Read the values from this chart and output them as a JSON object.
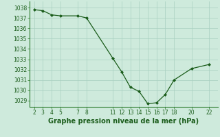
{
  "x": [
    2,
    3,
    4,
    5,
    7,
    8,
    11,
    12,
    13,
    14,
    15,
    16,
    17,
    18,
    20,
    22
  ],
  "y": [
    1037.8,
    1037.7,
    1037.3,
    1037.2,
    1037.2,
    1037.0,
    1033.1,
    1031.8,
    1030.3,
    1029.9,
    1028.7,
    1028.8,
    1029.6,
    1031.0,
    1032.1,
    1032.5
  ],
  "xticks": [
    2,
    3,
    4,
    5,
    7,
    8,
    11,
    12,
    13,
    14,
    15,
    16,
    17,
    18,
    20,
    22
  ],
  "yticks": [
    1029,
    1030,
    1031,
    1032,
    1033,
    1034,
    1035,
    1036,
    1037,
    1038
  ],
  "ylim": [
    1028.4,
    1038.6
  ],
  "xlim": [
    1.5,
    23.0
  ],
  "line_color": "#1a5c1a",
  "marker_color": "#1a5c1a",
  "bg_color": "#ceeadc",
  "grid_color": "#a8cfc0",
  "xlabel": "Graphe pression niveau de la mer (hPa)",
  "xlabel_color": "#1a5c1a",
  "tick_color": "#1a5c1a",
  "axis_color": "#2a7a2a",
  "tick_fontsize": 5.5,
  "xlabel_fontsize": 7.0
}
